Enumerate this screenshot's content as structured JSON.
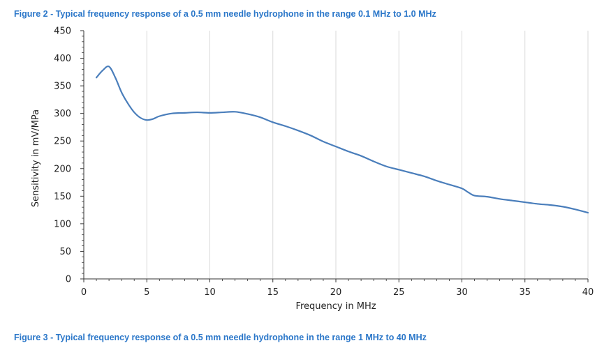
{
  "captions": {
    "top": "Figure 2 - Typical frequency response of a 0.5 mm needle hydrophone in the range 0.1 MHz to 1.0 MHz",
    "bottom": "Figure 3 - Typical frequency response of a 0.5 mm needle hydrophone in the range 1 MHz to 40 MHz"
  },
  "colors": {
    "caption": "#2b77c9",
    "series": "#4a7ebb",
    "grid": "#d9d9d9",
    "axis": "#333333"
  },
  "chart_data": {
    "type": "line",
    "title": "",
    "xlabel": "Frequency in MHz",
    "ylabel": "Sensitivity in mV/MPa",
    "xlim": [
      0,
      40
    ],
    "ylim": [
      0,
      450
    ],
    "xticks": [
      0,
      5,
      10,
      15,
      20,
      25,
      30,
      35,
      40
    ],
    "yticks": [
      0,
      50,
      100,
      150,
      200,
      250,
      300,
      350,
      400,
      450
    ],
    "grid": "vertical",
    "legend": "none",
    "series": [
      {
        "x": [
          1,
          1.5,
          2,
          2.5,
          3,
          3.5,
          4,
          4.5,
          5,
          5.5,
          6,
          7,
          8,
          9,
          10,
          11,
          12,
          13,
          14,
          15,
          16,
          17,
          18,
          19,
          20,
          21,
          22,
          23,
          24,
          25,
          26,
          27,
          28,
          29,
          30,
          30.5,
          31,
          32,
          33,
          34,
          35,
          36,
          37,
          38,
          39,
          40
        ],
        "y": [
          365,
          378,
          385,
          365,
          338,
          318,
          302,
          292,
          288,
          290,
          295,
          300,
          301,
          302,
          301,
          302,
          303,
          299,
          293,
          284,
          277,
          269,
          260,
          249,
          240,
          231,
          223,
          213,
          204,
          198,
          192,
          186,
          178,
          171,
          164,
          157,
          151,
          149,
          145,
          142,
          139,
          136,
          134,
          131,
          126,
          120
        ]
      }
    ]
  }
}
